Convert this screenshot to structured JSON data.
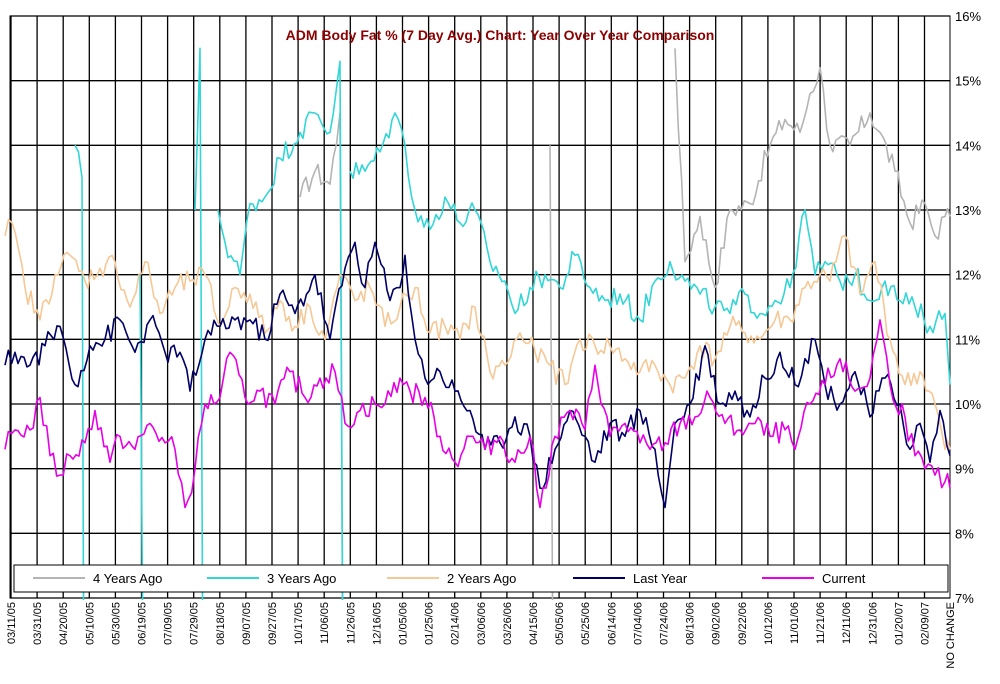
{
  "chart_data": {
    "type": "line",
    "title": "ADM Body Fat % (7 Day Avg.) Chart: Year Over Year Comparison",
    "xlabel": "",
    "ylabel": "",
    "ylim": [
      7,
      16
    ],
    "y_ticks": [
      "7%",
      "8%",
      "9%",
      "10%",
      "11%",
      "12%",
      "13%",
      "14%",
      "15%",
      "16%"
    ],
    "x_ticks": [
      "03/11/05",
      "03/31/05",
      "04/20/05",
      "05/10/05",
      "05/30/05",
      "06/19/05",
      "07/09/05",
      "07/29/05",
      "08/18/05",
      "09/07/05",
      "09/27/05",
      "10/17/05",
      "11/06/05",
      "11/26/05",
      "12/16/05",
      "01/05/06",
      "01/25/06",
      "02/14/06",
      "03/06/06",
      "03/26/06",
      "04/15/06",
      "05/05/06",
      "05/25/06",
      "06/14/06",
      "07/04/06",
      "07/24/06",
      "08/13/06",
      "09/02/06",
      "09/22/06",
      "10/12/06",
      "11/01/06",
      "11/21/06",
      "12/11/06",
      "12/31/06",
      "01/20/07",
      "02/09/07"
    ],
    "last_tick": "NO CHANGE",
    "grid": true,
    "legend_position": "bottom-inside",
    "series": [
      {
        "name": "4 Years Ago",
        "color": "#b4b4b4",
        "anchors": [
          [
            250,
            null
          ],
          [
            300,
            13.2
          ],
          [
            315,
            13.6
          ],
          [
            330,
            13.4
          ],
          [
            340,
            14.5
          ],
          [
            345,
            null
          ],
          [
            545,
            null
          ],
          [
            550,
            14.0
          ],
          [
            555,
            null
          ],
          [
            670,
            null
          ],
          [
            675,
            15.5
          ],
          [
            685,
            12.2
          ],
          [
            700,
            12.9
          ],
          [
            715,
            11.8
          ],
          [
            730,
            13.0
          ],
          [
            750,
            13.1
          ],
          [
            770,
            14.0
          ],
          [
            785,
            14.4
          ],
          [
            800,
            14.2
          ],
          [
            810,
            14.8
          ],
          [
            820,
            15.2
          ],
          [
            830,
            14.0
          ],
          [
            850,
            14.0
          ],
          [
            870,
            14.5
          ],
          [
            880,
            14.2
          ],
          [
            895,
            13.6
          ],
          [
            910,
            12.8
          ],
          [
            925,
            13.1
          ],
          [
            935,
            12.6
          ],
          [
            945,
            12.9
          ],
          [
            950,
            12.9
          ]
        ]
      },
      {
        "name": "3 Years Ago",
        "color": "#33d6d6",
        "anchors": [
          [
            70,
            null
          ],
          [
            75,
            14.0
          ],
          [
            82,
            13.5
          ],
          [
            85,
            null
          ],
          [
            135,
            null
          ],
          [
            140,
            12.0
          ],
          [
            145,
            null
          ],
          [
            190,
            null
          ],
          [
            195,
            13.0
          ],
          [
            200,
            15.5
          ],
          [
            205,
            null
          ],
          [
            215,
            null
          ],
          [
            218,
            13.0
          ],
          [
            225,
            12.5
          ],
          [
            240,
            12.0
          ],
          [
            250,
            13.1
          ],
          [
            265,
            13.2
          ],
          [
            280,
            13.8
          ],
          [
            300,
            14.2
          ],
          [
            315,
            14.5
          ],
          [
            330,
            14.2
          ],
          [
            340,
            15.3
          ],
          [
            345,
            null
          ],
          [
            350,
            13.6
          ],
          [
            365,
            13.6
          ],
          [
            380,
            13.9
          ],
          [
            395,
            14.5
          ],
          [
            405,
            14.0
          ],
          [
            415,
            13.0
          ],
          [
            430,
            12.7
          ],
          [
            445,
            13.2
          ],
          [
            460,
            12.8
          ],
          [
            475,
            13.0
          ],
          [
            490,
            12.2
          ],
          [
            505,
            11.9
          ],
          [
            515,
            11.4
          ],
          [
            530,
            11.8
          ],
          [
            545,
            12.0
          ],
          [
            560,
            11.8
          ],
          [
            575,
            12.3
          ],
          [
            590,
            11.8
          ],
          [
            605,
            11.6
          ],
          [
            620,
            11.7
          ],
          [
            640,
            11.3
          ],
          [
            655,
            11.9
          ],
          [
            670,
            12.2
          ],
          [
            685,
            11.9
          ],
          [
            700,
            11.7
          ],
          [
            715,
            11.5
          ],
          [
            730,
            11.4
          ],
          [
            745,
            11.7
          ],
          [
            760,
            11.4
          ],
          [
            775,
            11.6
          ],
          [
            790,
            11.8
          ],
          [
            805,
            13.0
          ],
          [
            815,
            12.0
          ],
          [
            825,
            12.2
          ],
          [
            840,
            11.9
          ],
          [
            855,
            12.0
          ],
          [
            870,
            11.6
          ],
          [
            885,
            11.9
          ],
          [
            900,
            11.6
          ],
          [
            915,
            11.5
          ],
          [
            930,
            11.2
          ],
          [
            945,
            11.4
          ],
          [
            950,
            10.3
          ]
        ]
      },
      {
        "name": "2 Years Ago",
        "color": "#f5c896",
        "anchors": [
          [
            5,
            12.6
          ],
          [
            12,
            12.8
          ],
          [
            25,
            11.8
          ],
          [
            40,
            11.3
          ],
          [
            55,
            12.0
          ],
          [
            70,
            12.3
          ],
          [
            85,
            11.9
          ],
          [
            100,
            12.1
          ],
          [
            115,
            12.2
          ],
          [
            130,
            11.5
          ],
          [
            145,
            12.2
          ],
          [
            160,
            11.4
          ],
          [
            175,
            11.8
          ],
          [
            190,
            11.9
          ],
          [
            205,
            12.0
          ],
          [
            220,
            11.2
          ],
          [
            235,
            11.8
          ],
          [
            250,
            11.7
          ],
          [
            265,
            11.1
          ],
          [
            280,
            11.6
          ],
          [
            295,
            11.2
          ],
          [
            310,
            11.5
          ],
          [
            325,
            11.0
          ],
          [
            340,
            12.0
          ],
          [
            355,
            11.6
          ],
          [
            370,
            11.8
          ],
          [
            385,
            11.2
          ],
          [
            400,
            11.5
          ],
          [
            415,
            11.8
          ],
          [
            430,
            11.1
          ],
          [
            445,
            11.2
          ],
          [
            460,
            11.0
          ],
          [
            475,
            11.5
          ],
          [
            490,
            10.5
          ],
          [
            505,
            10.6
          ],
          [
            520,
            11.1
          ],
          [
            535,
            10.8
          ],
          [
            550,
            10.6
          ],
          [
            565,
            10.3
          ],
          [
            580,
            11.0
          ],
          [
            595,
            10.9
          ],
          [
            610,
            10.9
          ],
          [
            625,
            10.7
          ],
          [
            640,
            10.5
          ],
          [
            655,
            10.6
          ],
          [
            670,
            10.3
          ],
          [
            685,
            10.4
          ],
          [
            700,
            10.9
          ],
          [
            715,
            10.7
          ],
          [
            730,
            11.2
          ],
          [
            745,
            11.1
          ],
          [
            760,
            11.0
          ],
          [
            775,
            11.3
          ],
          [
            790,
            11.3
          ],
          [
            805,
            11.8
          ],
          [
            820,
            12.0
          ],
          [
            830,
            11.9
          ],
          [
            845,
            12.6
          ],
          [
            860,
            11.7
          ],
          [
            875,
            12.2
          ],
          [
            890,
            11.0
          ],
          [
            905,
            10.3
          ],
          [
            920,
            10.5
          ],
          [
            935,
            10.0
          ],
          [
            945,
            9.3
          ],
          [
            950,
            9.3
          ]
        ]
      },
      {
        "name": "Last Year",
        "color": "#000066",
        "anchors": [
          [
            5,
            10.6
          ],
          [
            15,
            10.8
          ],
          [
            30,
            10.6
          ],
          [
            45,
            10.9
          ],
          [
            60,
            11.2
          ],
          [
            75,
            10.3
          ],
          [
            90,
            10.9
          ],
          [
            105,
            11.0
          ],
          [
            120,
            11.3
          ],
          [
            135,
            10.8
          ],
          [
            150,
            11.3
          ],
          [
            165,
            10.8
          ],
          [
            180,
            10.8
          ],
          [
            190,
            10.2
          ],
          [
            205,
            11.0
          ],
          [
            220,
            11.2
          ],
          [
            235,
            11.3
          ],
          [
            250,
            11.3
          ],
          [
            265,
            11.0
          ],
          [
            280,
            11.7
          ],
          [
            295,
            11.4
          ],
          [
            315,
            12.0
          ],
          [
            330,
            11.0
          ],
          [
            345,
            12.1
          ],
          [
            355,
            12.5
          ],
          [
            365,
            11.8
          ],
          [
            375,
            12.5
          ],
          [
            390,
            11.6
          ],
          [
            400,
            11.8
          ],
          [
            405,
            12.3
          ],
          [
            415,
            11.0
          ],
          [
            425,
            10.4
          ],
          [
            440,
            10.5
          ],
          [
            455,
            10.2
          ],
          [
            470,
            9.9
          ],
          [
            485,
            9.3
          ],
          [
            500,
            9.4
          ],
          [
            515,
            9.8
          ],
          [
            530,
            9.5
          ],
          [
            540,
            8.7
          ],
          [
            555,
            9.3
          ],
          [
            570,
            9.9
          ],
          [
            585,
            9.5
          ],
          [
            595,
            9.1
          ],
          [
            610,
            9.7
          ],
          [
            625,
            9.5
          ],
          [
            640,
            9.9
          ],
          [
            655,
            9.3
          ],
          [
            665,
            8.4
          ],
          [
            675,
            9.7
          ],
          [
            690,
            10.0
          ],
          [
            705,
            10.9
          ],
          [
            720,
            10.0
          ],
          [
            735,
            10.2
          ],
          [
            750,
            9.8
          ],
          [
            765,
            10.4
          ],
          [
            780,
            10.8
          ],
          [
            795,
            10.3
          ],
          [
            805,
            10.7
          ],
          [
            815,
            11.0
          ],
          [
            825,
            10.3
          ],
          [
            840,
            10.0
          ],
          [
            855,
            10.5
          ],
          [
            870,
            9.8
          ],
          [
            885,
            10.4
          ],
          [
            900,
            10.0
          ],
          [
            910,
            9.3
          ],
          [
            920,
            9.7
          ],
          [
            930,
            9.1
          ],
          [
            940,
            9.9
          ],
          [
            950,
            9.2
          ]
        ]
      },
      {
        "name": "Current",
        "color": "#e600e6",
        "anchors": [
          [
            5,
            9.3
          ],
          [
            15,
            9.6
          ],
          [
            30,
            9.6
          ],
          [
            40,
            10.1
          ],
          [
            50,
            9.2
          ],
          [
            60,
            8.9
          ],
          [
            70,
            9.2
          ],
          [
            85,
            9.4
          ],
          [
            95,
            9.9
          ],
          [
            110,
            9.1
          ],
          [
            120,
            9.5
          ],
          [
            135,
            9.3
          ],
          [
            150,
            9.7
          ],
          [
            165,
            9.4
          ],
          [
            175,
            9.3
          ],
          [
            185,
            8.4
          ],
          [
            195,
            9.0
          ],
          [
            205,
            10.0
          ],
          [
            220,
            10.1
          ],
          [
            230,
            10.8
          ],
          [
            245,
            10.1
          ],
          [
            260,
            10.2
          ],
          [
            275,
            10.0
          ],
          [
            290,
            10.5
          ],
          [
            305,
            10.1
          ],
          [
            320,
            10.4
          ],
          [
            335,
            10.5
          ],
          [
            345,
            9.7
          ],
          [
            360,
            9.9
          ],
          [
            375,
            10.0
          ],
          [
            385,
            10.0
          ],
          [
            400,
            10.4
          ],
          [
            410,
            10.2
          ],
          [
            425,
            10.1
          ],
          [
            440,
            9.5
          ],
          [
            455,
            9.1
          ],
          [
            470,
            9.5
          ],
          [
            485,
            9.3
          ],
          [
            500,
            9.5
          ],
          [
            515,
            9.1
          ],
          [
            530,
            9.5
          ],
          [
            540,
            8.4
          ],
          [
            555,
            9.5
          ],
          [
            570,
            9.9
          ],
          [
            585,
            9.6
          ],
          [
            595,
            10.6
          ],
          [
            610,
            9.5
          ],
          [
            625,
            9.7
          ],
          [
            640,
            9.4
          ],
          [
            650,
            9.3
          ],
          [
            665,
            9.4
          ],
          [
            680,
            9.7
          ],
          [
            695,
            9.8
          ],
          [
            710,
            10.1
          ],
          [
            725,
            9.7
          ],
          [
            740,
            9.6
          ],
          [
            755,
            9.7
          ],
          [
            770,
            9.5
          ],
          [
            785,
            9.6
          ],
          [
            795,
            9.3
          ],
          [
            810,
            10.0
          ],
          [
            825,
            10.3
          ],
          [
            840,
            10.7
          ],
          [
            855,
            10.2
          ],
          [
            870,
            10.4
          ],
          [
            880,
            11.3
          ],
          [
            890,
            10.3
          ],
          [
            905,
            9.8
          ],
          [
            915,
            9.2
          ],
          [
            925,
            9.0
          ],
          [
            935,
            8.9
          ],
          [
            945,
            8.8
          ],
          [
            950,
            8.7
          ]
        ]
      }
    ]
  }
}
